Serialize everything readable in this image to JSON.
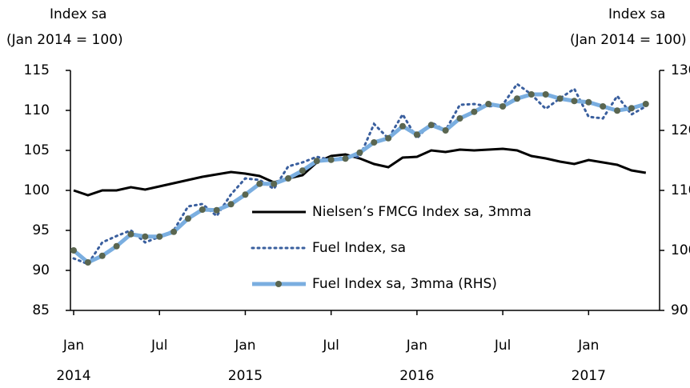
{
  "chart_data": {
    "type": "line",
    "ylabel": "Index sa",
    "ylabel_note": "(Jan 2014 = 100)",
    "y2label": "Index sa",
    "y2label_note": "(Jan 2014 = 100)",
    "categories": [
      "Jan 2014",
      null,
      null,
      null,
      null,
      null,
      "Jul",
      null,
      null,
      null,
      null,
      null,
      "Jan 2015",
      null,
      null,
      null,
      null,
      null,
      "Jul",
      null,
      null,
      null,
      null,
      null,
      "Jan 2016",
      null,
      null,
      null,
      null,
      null,
      "Jul",
      null,
      null,
      null,
      null,
      null,
      "Jan 2017",
      null,
      null,
      null,
      null
    ],
    "ylim": [
      85,
      115
    ],
    "yticks": [
      85,
      90,
      95,
      100,
      105,
      110,
      115
    ],
    "y2lim": [
      90,
      130
    ],
    "y2ticks": [
      90,
      100,
      110,
      120,
      130
    ],
    "series": [
      {
        "name": "Nielsen’s FMCG Index sa, 3mma",
        "color": "#000000",
        "style": "solid",
        "values": [
          100,
          99.4,
          100,
          100,
          100.4,
          100.1,
          100.5,
          100.9,
          101.3,
          101.7,
          102,
          102.3,
          102.1,
          101.8,
          101,
          101.5,
          101.9,
          103.5,
          104.3,
          104.5,
          104,
          103.3,
          102.9,
          104.1,
          104.2,
          105,
          104.8,
          105.1,
          105,
          105.1,
          105.2,
          105,
          104.3,
          104,
          103.6,
          103.3,
          103.8,
          103.5,
          103.2,
          102.5,
          102.2
        ]
      },
      {
        "name": "Fuel Index, sa",
        "color": "#3a5f9e",
        "style": "dotted",
        "values": [
          91.5,
          90.8,
          93.5,
          94.3,
          95,
          93.5,
          94.2,
          95,
          98,
          98.3,
          96.8,
          99.5,
          101.5,
          101.3,
          100.2,
          103,
          103.5,
          104.2,
          103.8,
          104.2,
          104.2,
          108.3,
          106.5,
          109.5,
          106.5,
          108.5,
          107.5,
          110.7,
          110.8,
          110.5,
          110.7,
          113.3,
          112,
          110.2,
          111.5,
          112.7,
          109.2,
          109,
          111.8,
          109.5,
          110.5
        ]
      },
      {
        "name": "Fuel Index sa, 3mma (RHS)",
        "color": "#7aaee0",
        "marker_color": "#5a6650",
        "style": "solid-marker",
        "axis": "y2",
        "values": [
          100,
          98,
          99.1,
          100.7,
          102.7,
          102.3,
          102.3,
          103.1,
          105.3,
          106.8,
          106.7,
          107.7,
          109.3,
          111.1,
          111.1,
          112,
          113.3,
          114.9,
          115.1,
          115.3,
          116.3,
          118,
          118.7,
          120.7,
          119.3,
          120.9,
          120,
          122,
          123.1,
          124.4,
          124,
          125.3,
          126,
          126,
          125.3,
          124.9,
          124.7,
          124,
          123.3,
          123.7,
          124.4
        ]
      }
    ]
  }
}
